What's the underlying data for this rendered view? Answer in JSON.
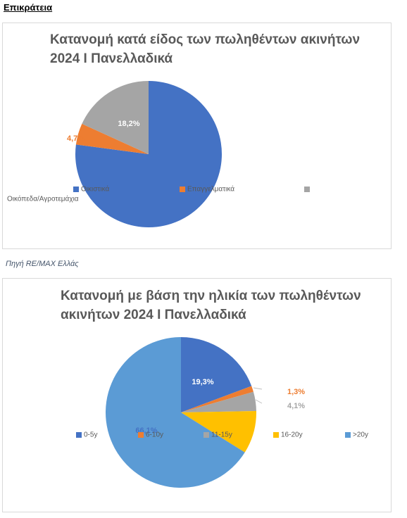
{
  "heading": "Επικράτεια",
  "source": "Πηγή RE/MAX Ελλάς",
  "chart_data": [
    {
      "type": "pie",
      "title": "Κατανομή κατά είδος των πωληθέντων ακινήτων 2024 Ι Πανελλαδικά",
      "categories": [
        "Οικιστικά",
        "Επαγγελματικά",
        "Οικόπεδα/Αγροτεμάχια"
      ],
      "values": [
        77.1,
        4.7,
        18.2
      ],
      "value_labels": [
        null,
        "4,7%",
        "18,2%"
      ],
      "colors": [
        "#4472c4",
        "#ed7d31",
        "#a5a5a5"
      ]
    },
    {
      "type": "pie",
      "title": "Κατανομή με βάση την ηλικία των πωληθέντων ακινήτων 2024 Ι Πανελλαδικά",
      "categories": [
        "0-5y",
        "6-10y",
        "11-15y",
        "16-20y",
        ">20y"
      ],
      "values": [
        19.3,
        1.3,
        4.1,
        9.2,
        66.1
      ],
      "value_labels": [
        "19,3%",
        "1,3%",
        "4,1%",
        null,
        "66,1%"
      ],
      "colors": [
        "#4472c4",
        "#ed7d31",
        "#a5a5a5",
        "#ffc000",
        "#5b9bd5"
      ]
    }
  ]
}
